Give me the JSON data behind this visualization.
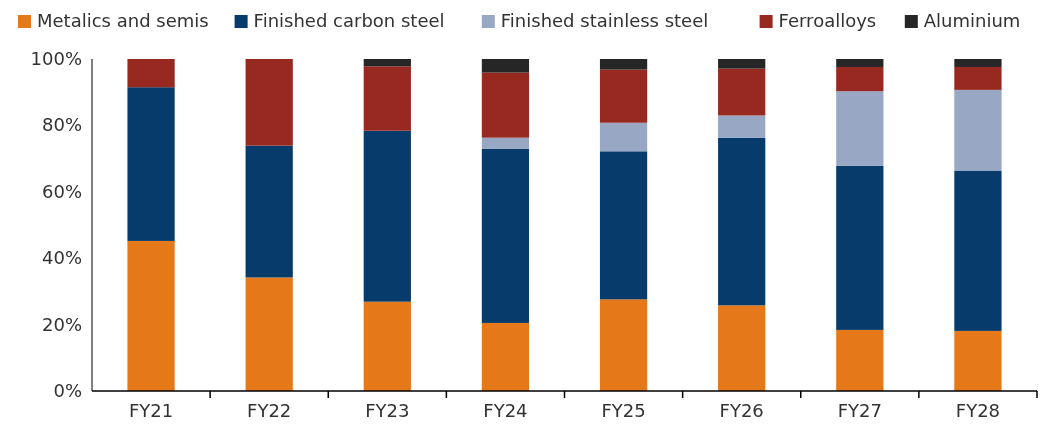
{
  "chart_data": {
    "type": "bar",
    "stacked": true,
    "categories": [
      "FY21",
      "FY22",
      "FY23",
      "FY24",
      "FY25",
      "FY26",
      "FY27",
      "FY28"
    ],
    "series": [
      {
        "name": "Metalics and semis",
        "color": "#e57818",
        "values": [
          45.2,
          34.2,
          26.9,
          20.5,
          27.6,
          25.8,
          18.4,
          18.1
        ]
      },
      {
        "name": "Finished carbon steel",
        "color": "#073b6c",
        "values": [
          46.3,
          39.7,
          51.5,
          52.5,
          44.6,
          50.5,
          49.4,
          48.3
        ]
      },
      {
        "name": "Finished stainless steel",
        "color": "#98a7c3",
        "values": [
          0,
          0,
          0,
          3.3,
          8.6,
          6.7,
          22.5,
          24.3
        ]
      },
      {
        "name": "Ferroalloys",
        "color": "#972920",
        "values": [
          8.5,
          26.1,
          19.4,
          19.6,
          16.0,
          14.1,
          7.3,
          6.9
        ]
      },
      {
        "name": "Aluminium",
        "color": "#262626",
        "values": [
          0,
          0,
          2.2,
          4.1,
          3.2,
          2.9,
          2.4,
          2.4
        ]
      }
    ],
    "ylim": [
      0,
      100
    ],
    "yticks": [
      {
        "value": 0,
        "label": "0%"
      },
      {
        "value": 20,
        "label": "20%"
      },
      {
        "value": 40,
        "label": "40%"
      },
      {
        "value": 60,
        "label": "60%"
      },
      {
        "value": 80,
        "label": "80%"
      },
      {
        "value": 100,
        "label": "100%"
      }
    ],
    "legend": "top",
    "grid": false
  }
}
